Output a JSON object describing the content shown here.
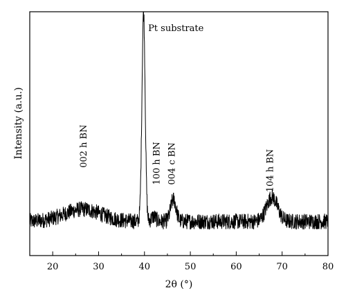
{
  "chart_data": {
    "type": "line",
    "xlabel": "2θ (°)",
    "ylabel": "Intensity (a.u.)",
    "xlim": [
      15,
      80
    ],
    "ylim": [
      0,
      100
    ],
    "xticks": [
      20,
      30,
      40,
      50,
      60,
      70,
      80
    ],
    "grid": false,
    "line_color": "#000000",
    "baseline": 14,
    "noise_amplitude": 3.2,
    "peaks": [
      {
        "center": 26.5,
        "width": 4.0,
        "height": 5
      },
      {
        "center": 39.8,
        "width": 0.35,
        "height": 86
      },
      {
        "center": 46.3,
        "width": 0.6,
        "height": 9
      },
      {
        "center": 67.8,
        "width": 1.2,
        "height": 10
      },
      {
        "center": 42.0,
        "width": 0.5,
        "height": 2
      }
    ],
    "annotations": [
      {
        "text": "Pt substrate",
        "x": 40.8,
        "y": 92,
        "rotation": 0
      },
      {
        "text": "002 h BN",
        "x": 27.4,
        "y": 36,
        "rotation": -90
      },
      {
        "text": "100 h BN",
        "x": 43.3,
        "y": 29,
        "rotation": -90
      },
      {
        "text": "004 c BN",
        "x": 46.6,
        "y": 29,
        "rotation": -90
      },
      {
        "text": "104 h BN",
        "x": 68.0,
        "y": 26,
        "rotation": -90
      }
    ]
  }
}
